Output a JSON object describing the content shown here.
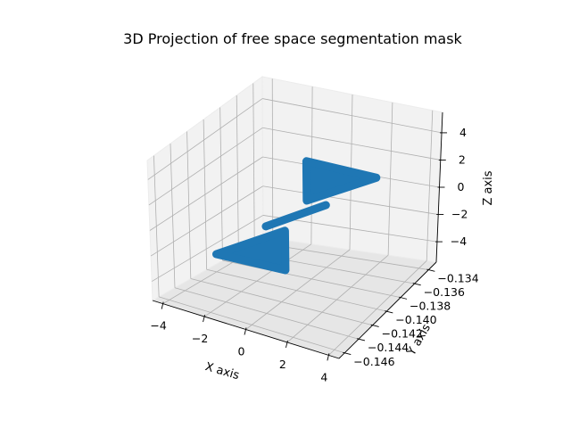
{
  "chart_data": {
    "type": "scatter",
    "projection": "3d",
    "title": "3D Projection of free space segmentation mask",
    "xlabel": "X axis",
    "ylabel": "Y axis",
    "zlabel": "Z axis",
    "xlim": [
      -4.5,
      4.5
    ],
    "ylim": [
      -0.1468,
      -0.1329
    ],
    "zlim": [
      -5.5,
      5.5
    ],
    "x_ticks": [
      {
        "value": -4,
        "label": "−4"
      },
      {
        "value": -2,
        "label": "−2"
      },
      {
        "value": 0,
        "label": "0"
      },
      {
        "value": 2,
        "label": "2"
      },
      {
        "value": 4,
        "label": "4"
      }
    ],
    "y_ticks": [
      {
        "value": -0.146,
        "label": "−0.146"
      },
      {
        "value": -0.144,
        "label": "−0.144"
      },
      {
        "value": -0.142,
        "label": "−0.142"
      },
      {
        "value": -0.14,
        "label": "−0.140"
      },
      {
        "value": -0.138,
        "label": "−0.138"
      },
      {
        "value": -0.136,
        "label": "−0.136"
      },
      {
        "value": -0.134,
        "label": "−0.134"
      }
    ],
    "z_ticks": [
      {
        "value": -4,
        "label": "−4"
      },
      {
        "value": -2,
        "label": "−2"
      },
      {
        "value": 0,
        "label": "0"
      },
      {
        "value": 2,
        "label": "2"
      },
      {
        "value": 4,
        "label": "4"
      }
    ],
    "grid": true,
    "series": [
      {
        "color": "#1f77b4",
        "upper_triangle": {
          "vertices": [
            {
              "x": 0.55,
              "y": -0.14,
              "z": 4.2
            },
            {
              "x": 0.55,
              "y": -0.14,
              "z": 1.3
            },
            {
              "x": 4.0,
              "y": -0.14,
              "z": 4.2
            }
          ]
        },
        "lower_triangle": {
          "vertices": [
            {
              "x": -0.55,
              "y": -0.14,
              "z": -4.2
            },
            {
              "x": -0.55,
              "y": -0.14,
              "z": -1.3
            },
            {
              "x": -4.0,
              "y": -0.14,
              "z": -4.2
            }
          ]
        },
        "band": {
          "from": {
            "x": -1.5,
            "y": -0.14,
            "z": -1.3
          },
          "to": {
            "x": 1.5,
            "y": -0.14,
            "z": 1.3
          }
        }
      }
    ]
  }
}
